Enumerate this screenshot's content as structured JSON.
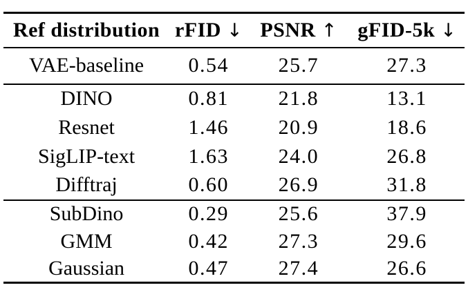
{
  "figure": {
    "background_color": "#ffffff",
    "text_color": "#000000",
    "rule_color": "#000000"
  },
  "table": {
    "columns": [
      {
        "label": "Ref distribution"
      },
      {
        "label": "rFID",
        "arrow": "↓"
      },
      {
        "label": "PSNR",
        "arrow": "↑"
      },
      {
        "label": "gFID-5k",
        "arrow": "↓"
      }
    ],
    "sections": [
      {
        "rows": [
          {
            "ref": "VAE-baseline",
            "rfid": "0.54",
            "psnr": "25.7",
            "gfid_5k": "27.3"
          }
        ]
      },
      {
        "rows": [
          {
            "ref": "DINO",
            "rfid": "0.81",
            "psnr": "21.8",
            "gfid_5k": "13.1"
          },
          {
            "ref": "Resnet",
            "rfid": "1.46",
            "psnr": "20.9",
            "gfid_5k": "18.6"
          },
          {
            "ref": "SigLIP-text",
            "rfid": "1.63",
            "psnr": "24.0",
            "gfid_5k": "26.8"
          },
          {
            "ref": "Difftraj",
            "rfid": "0.60",
            "psnr": "26.9",
            "gfid_5k": "31.8"
          }
        ]
      },
      {
        "rows": [
          {
            "ref": "SubDino",
            "rfid": "0.29",
            "psnr": "25.6",
            "gfid_5k": "37.9"
          },
          {
            "ref": "GMM",
            "rfid": "0.42",
            "psnr": "27.3",
            "gfid_5k": "29.6"
          },
          {
            "ref": "Gaussian",
            "rfid": "0.47",
            "psnr": "27.4",
            "gfid_5k": "26.6"
          }
        ]
      }
    ]
  }
}
